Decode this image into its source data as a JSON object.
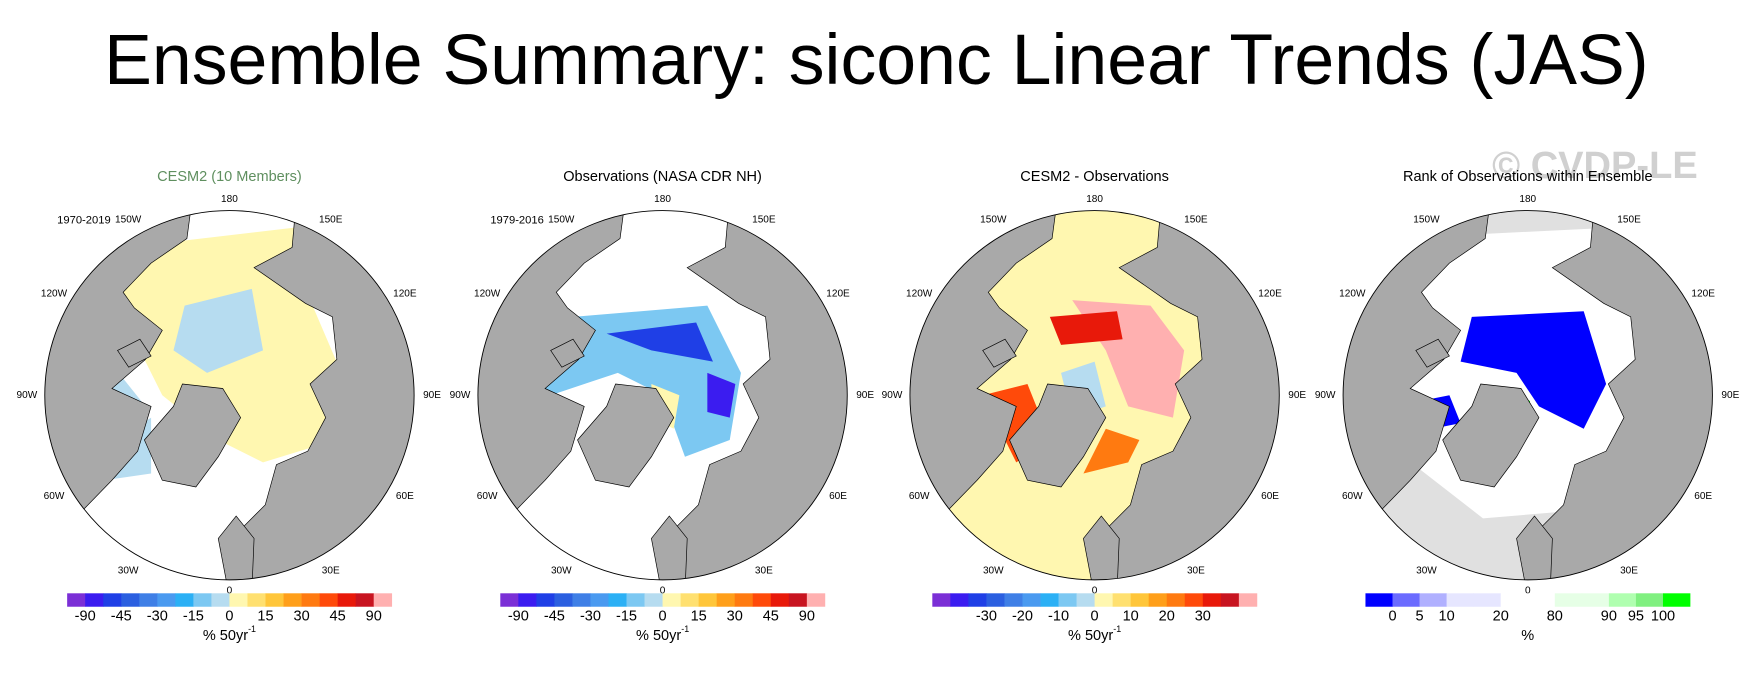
{
  "title": "Ensemble Summary: siconc Linear Trends (JAS)",
  "watermark": "© CVDP-LE",
  "longitude_labels": [
    "180",
    "150E",
    "120E",
    "90E",
    "60E",
    "30E",
    "0",
    "30W",
    "60W",
    "90W",
    "120W",
    "150W"
  ],
  "panels": [
    {
      "title": "CESM2 (10 Members)",
      "title_color": "#5f8f5f",
      "period": "1970-2019",
      "colorbar": {
        "colors": [
          "#7b2fd6",
          "#3b1cf0",
          "#1f3fe6",
          "#2b5fe0",
          "#3f7fe6",
          "#4a9af0",
          "#2bb0f5",
          "#7cc8f2",
          "#b6dcf0",
          "#fff7b0",
          "#ffe070",
          "#ffc63a",
          "#ff9f1a",
          "#ff7a10",
          "#ff4a0a",
          "#e8190a",
          "#c81420",
          "#ffb0b0"
        ],
        "ticks": [
          -90,
          null,
          -45,
          null,
          -30,
          null,
          -15,
          null,
          0,
          null,
          15,
          null,
          30,
          null,
          45,
          null,
          90
        ],
        "unit": "% 50yr",
        "unit_exponent": "-1"
      }
    },
    {
      "title": "Observations (NASA CDR NH)",
      "title_color": "#000000",
      "period": "1979-2016",
      "colorbar": {
        "colors": [
          "#7b2fd6",
          "#3b1cf0",
          "#1f3fe6",
          "#2b5fe0",
          "#3f7fe6",
          "#4a9af0",
          "#2bb0f5",
          "#7cc8f2",
          "#b6dcf0",
          "#fff7b0",
          "#ffe070",
          "#ffc63a",
          "#ff9f1a",
          "#ff7a10",
          "#ff4a0a",
          "#e8190a",
          "#c81420",
          "#ffb0b0"
        ],
        "ticks": [
          -90,
          null,
          -45,
          null,
          -30,
          null,
          -15,
          null,
          0,
          null,
          15,
          null,
          30,
          null,
          45,
          null,
          90
        ],
        "unit": "% 50yr",
        "unit_exponent": "-1"
      }
    },
    {
      "title": "CESM2 - Observations",
      "title_color": "#000000",
      "colorbar": {
        "colors": [
          "#7b2fd6",
          "#3b1cf0",
          "#1f3fe6",
          "#2b5fe0",
          "#3f7fe6",
          "#4a9af0",
          "#2bb0f5",
          "#7cc8f2",
          "#b6dcf0",
          "#fff7b0",
          "#ffe070",
          "#ffc63a",
          "#ff9f1a",
          "#ff7a10",
          "#ff4a0a",
          "#e8190a",
          "#c81420",
          "#ffb0b0"
        ],
        "ticks": [
          null,
          null,
          -30,
          null,
          -20,
          null,
          -10,
          null,
          0,
          null,
          10,
          null,
          20,
          null,
          30,
          null,
          null
        ],
        "unit": "% 50yr",
        "unit_exponent": "-1"
      }
    },
    {
      "title": "Rank of Observations within Ensemble",
      "title_color": "#000000",
      "colorbar": {
        "colors": [
          "#0000ff",
          "#6b6bff",
          "#b0b0ff",
          "#e6e6ff",
          "#e6e6ff",
          "#ffffff",
          "#ffffff",
          "#e6ffe6",
          "#e6ffe6",
          "#b0ffb0",
          "#80f080",
          "#00ff00"
        ],
        "ticks": [
          0,
          5,
          10,
          null,
          20,
          null,
          80,
          null,
          90,
          95,
          100
        ],
        "unit": "%"
      }
    }
  ]
}
